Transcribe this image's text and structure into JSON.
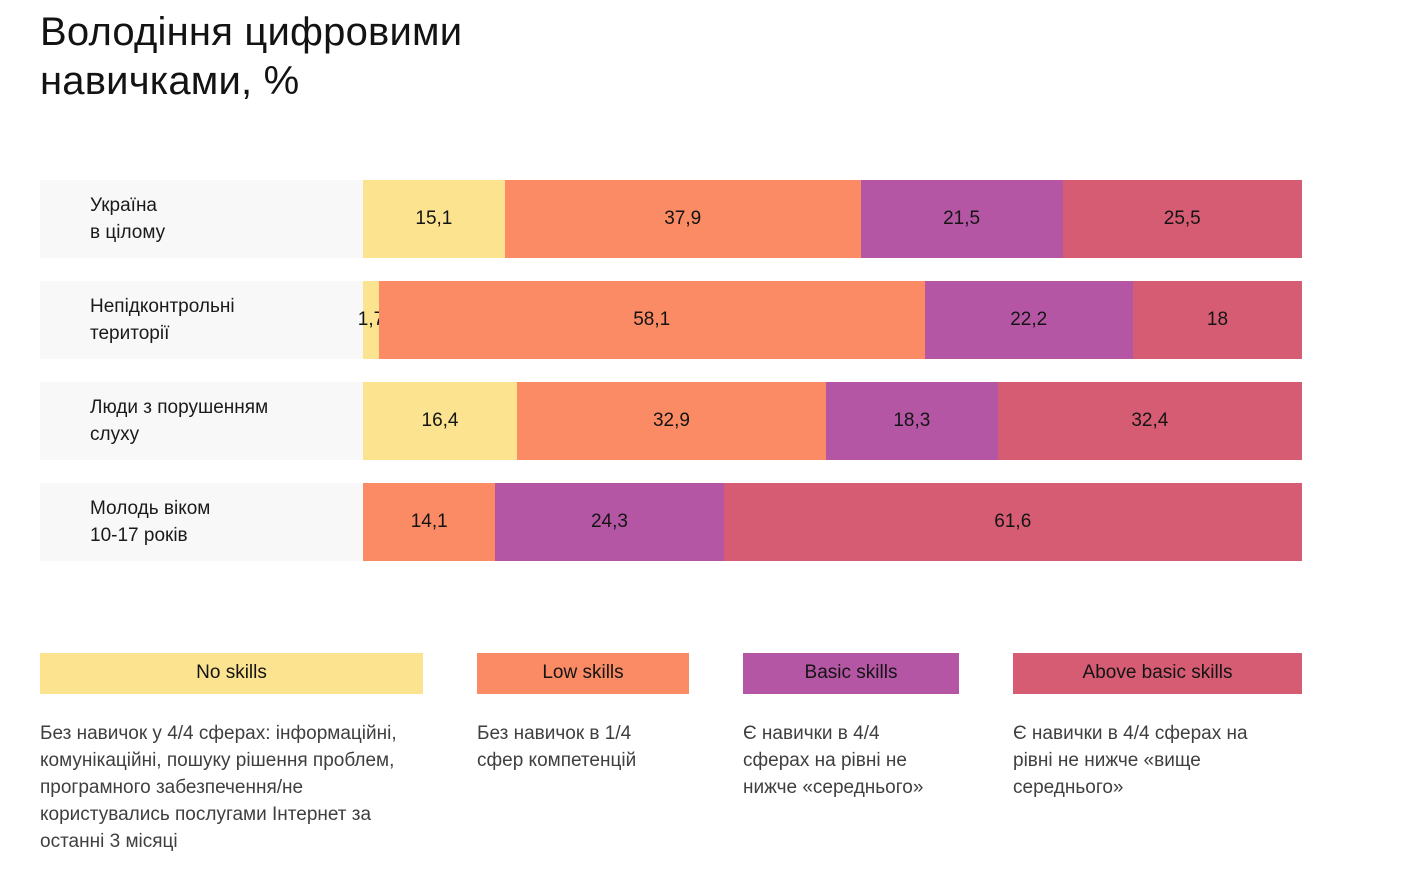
{
  "title_lines": [
    "Володіння цифровими",
    "навичками, %"
  ],
  "colors": {
    "no_skills": "#FBE38F",
    "low_skills": "#FB8B65",
    "basic_skills": "#B556A4",
    "above_basic_skills": "#D65C74",
    "row_label_bg": "#F8F8F8"
  },
  "chart_data": {
    "type": "bar",
    "orientation": "horizontal",
    "stacked": true,
    "unit": "%",
    "title": "Володіння цифровими навичками, %",
    "xlim": [
      0,
      100
    ],
    "grid": false,
    "legend_position": "bottom",
    "categories": [
      "Україна в цілому",
      "Непідконтрольні території",
      "Люди з порушенням слуху",
      "Молодь віком 10-17 років"
    ],
    "series": [
      {
        "name": "No skills",
        "color": "#FBE38F",
        "values": [
          15.1,
          1.7,
          16.4,
          null
        ]
      },
      {
        "name": "Low skills",
        "color": "#FB8B65",
        "values": [
          37.9,
          58.1,
          32.9,
          14.1
        ]
      },
      {
        "name": "Basic skills",
        "color": "#B556A4",
        "values": [
          21.5,
          22.2,
          18.3,
          24.3
        ]
      },
      {
        "name": "Above basic skills",
        "color": "#D65C74",
        "values": [
          25.5,
          18,
          32.4,
          61.6
        ]
      }
    ]
  },
  "rows": [
    {
      "label_lines": [
        "Україна",
        "в цілому"
      ],
      "segments": [
        {
          "key": "no_skills",
          "value": 15.1,
          "label": "15,1"
        },
        {
          "key": "low_skills",
          "value": 37.9,
          "label": "37,9"
        },
        {
          "key": "basic_skills",
          "value": 21.5,
          "label": "21,5"
        },
        {
          "key": "above_basic_skills",
          "value": 25.5,
          "label": "25,5"
        }
      ]
    },
    {
      "label_lines": [
        "Непідконтрольні",
        "території"
      ],
      "segments": [
        {
          "key": "no_skills",
          "value": 1.7,
          "label": "1,7"
        },
        {
          "key": "low_skills",
          "value": 58.1,
          "label": "58,1"
        },
        {
          "key": "basic_skills",
          "value": 22.2,
          "label": "22,2"
        },
        {
          "key": "above_basic_skills",
          "value": 18,
          "label": "18"
        }
      ]
    },
    {
      "label_lines": [
        "Люди з порушенням",
        "слуху"
      ],
      "segments": [
        {
          "key": "no_skills",
          "value": 16.4,
          "label": "16,4"
        },
        {
          "key": "low_skills",
          "value": 32.9,
          "label": "32,9"
        },
        {
          "key": "basic_skills",
          "value": 18.3,
          "label": "18,3"
        },
        {
          "key": "above_basic_skills",
          "value": 32.4,
          "label": "32,4"
        }
      ]
    },
    {
      "label_lines": [
        "Молодь віком",
        "10-17 років"
      ],
      "segments": [
        {
          "key": "low_skills",
          "value": 14.1,
          "label": "14,1"
        },
        {
          "key": "basic_skills",
          "value": 24.3,
          "label": "24,3"
        },
        {
          "key": "above_basic_skills",
          "value": 61.6,
          "label": "61,6"
        }
      ]
    }
  ],
  "legend": [
    {
      "key": "no_skills",
      "label": "No skills",
      "description": "Без навичок у 4/4 сферах: інформаційні, комунікаційні, пошуку рішення проблем, програмного забезпечення/не користувались послугами Інтернет за останні 3 місяці"
    },
    {
      "key": "low_skills",
      "label": "Low skills",
      "description": "Без навичок в 1/4 сфер компетенцій"
    },
    {
      "key": "basic_skills",
      "label": "Basic skills",
      "description": "Є навички в 4/4 сферах на рівні не нижче «середнього»"
    },
    {
      "key": "above_basic_skills",
      "label": "Above basic skills",
      "description": "Є навички в 4/4 сферах на рівні не нижче «вище середнього»"
    }
  ]
}
